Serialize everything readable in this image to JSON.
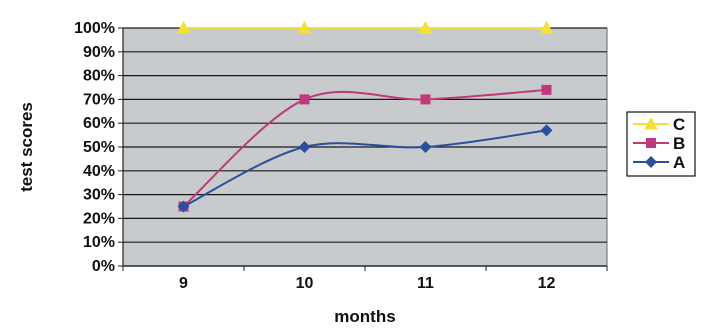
{
  "chart_data": {
    "type": "line",
    "categories": [
      "9",
      "10",
      "11",
      "12"
    ],
    "xlabel": "months",
    "ylabel": "test scores",
    "ylim": [
      0,
      100
    ],
    "yticks": [
      "0%",
      "10%",
      "20%",
      "30%",
      "40%",
      "50%",
      "60%",
      "70%",
      "80%",
      "90%",
      "100%"
    ],
    "grid": true,
    "legend_position": "right",
    "plot_background": "#c8cbcd",
    "series": [
      {
        "name": "C",
        "values": [
          100,
          100,
          100,
          100
        ],
        "color": "#f4e135",
        "marker": "triangle"
      },
      {
        "name": "B",
        "values": [
          25,
          70,
          70,
          74
        ],
        "color": "#c0397a",
        "marker": "square"
      },
      {
        "name": "A",
        "values": [
          25,
          50,
          50,
          57
        ],
        "color": "#2a4f9c",
        "marker": "diamond"
      }
    ]
  }
}
